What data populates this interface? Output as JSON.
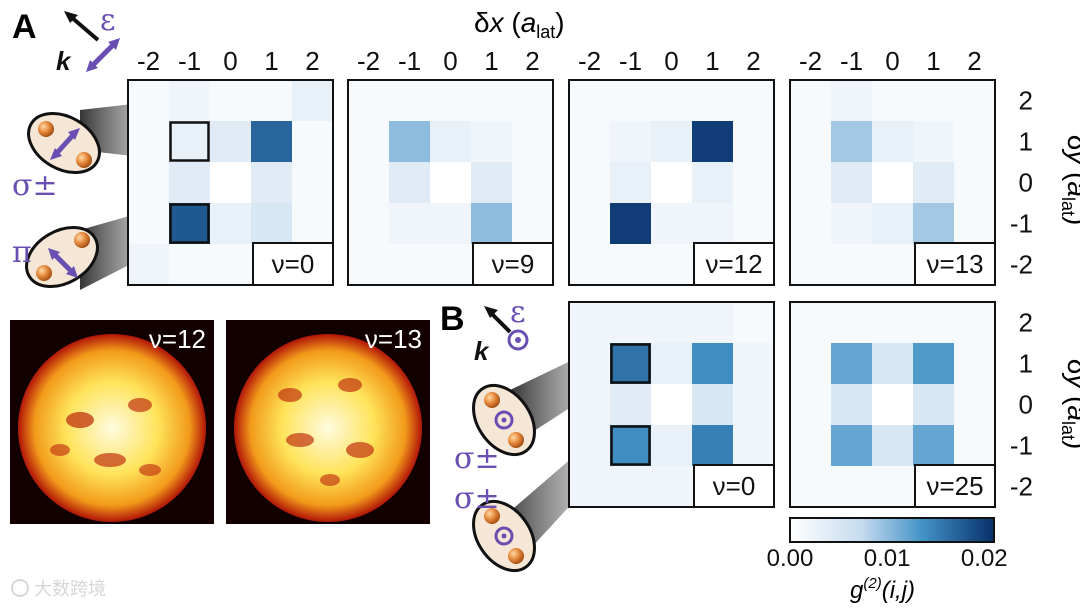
{
  "figure": {
    "panel_a_label": "A",
    "panel_b_label": "B",
    "polarization_symbol": "ε",
    "wavevector_symbol": "k",
    "x_axis_label_prefix": "δ",
    "x_axis_label_var": "x",
    "x_axis_label_paren_open": " (",
    "x_axis_label_a": "a",
    "x_axis_label_sub": "lat",
    "x_axis_label_paren_close": ")",
    "y_axis_label_prefix": "δ",
    "y_axis_label_var": "y",
    "y_axis_label_a": "a",
    "y_axis_label_sub": "lat",
    "transition_sigma": "σ±",
    "transition_pi": "π",
    "watermark": "大数跨境"
  },
  "colorbar": {
    "label_g": "g",
    "label_sup": "(2)",
    "label_args": "(i,j)",
    "tick_labels": [
      "0.00",
      "0.01",
      "0.02"
    ],
    "min": 0.0,
    "max": 0.021,
    "color_low": "#ffffff",
    "color_high": "#08306b"
  },
  "snapshots": [
    {
      "label": "ν=12"
    },
    {
      "label": "ν=13"
    }
  ],
  "colors": {
    "accent_purple": "#6a4fb3",
    "atom_orange": "#d9752f",
    "frame": "#111111"
  },
  "chart_data": {
    "type": "heatmap",
    "x_ticks": [
      -2,
      -1,
      0,
      1,
      2
    ],
    "y_ticks": [
      2,
      1,
      0,
      -1,
      -2
    ],
    "x_tick_labels": [
      "-2",
      "-1",
      "0",
      "1",
      "2"
    ],
    "y_tick_labels": [
      "2",
      "1",
      "0",
      "-1",
      "-2"
    ],
    "xlabel": "δx (a_lat)",
    "ylabel": "δy (a_lat)",
    "value_label": "g(2)(i,j)",
    "value_range": [
      0.0,
      0.02
    ],
    "panels": [
      {
        "row": "A",
        "label": "ν=0",
        "matrix": [
          [
            0.001,
            0.002,
            0.001,
            0.001,
            0.003
          ],
          [
            0.001,
            0.003,
            0.004,
            0.017,
            0.001
          ],
          [
            0.001,
            0.004,
            0.0,
            0.004,
            0.001
          ],
          [
            0.001,
            0.018,
            0.003,
            0.005,
            0.001
          ],
          [
            0.002,
            0.001,
            0.001,
            0.001,
            0.001
          ]
        ],
        "highlight": [
          [
            -1,
            1
          ],
          [
            -1,
            -1
          ]
        ]
      },
      {
        "row": "A",
        "label": "ν=9",
        "matrix": [
          [
            0.001,
            0.001,
            0.001,
            0.001,
            0.001
          ],
          [
            0.001,
            0.01,
            0.003,
            0.002,
            0.001
          ],
          [
            0.001,
            0.004,
            0.0,
            0.004,
            0.001
          ],
          [
            0.001,
            0.002,
            0.002,
            0.01,
            0.001
          ],
          [
            0.001,
            0.001,
            0.001,
            0.001,
            0.001
          ]
        ]
      },
      {
        "row": "A",
        "label": "ν=12",
        "matrix": [
          [
            0.001,
            0.001,
            0.001,
            0.001,
            0.001
          ],
          [
            0.001,
            0.002,
            0.003,
            0.02,
            0.001
          ],
          [
            0.001,
            0.003,
            0.0,
            0.003,
            0.001
          ],
          [
            0.001,
            0.02,
            0.002,
            0.002,
            0.001
          ],
          [
            0.001,
            0.001,
            0.001,
            0.001,
            0.001
          ]
        ]
      },
      {
        "row": "A",
        "label": "ν=13",
        "matrix": [
          [
            0.001,
            0.002,
            0.001,
            0.001,
            0.001
          ],
          [
            0.001,
            0.009,
            0.003,
            0.002,
            0.001
          ],
          [
            0.001,
            0.004,
            0.0,
            0.004,
            0.001
          ],
          [
            0.001,
            0.002,
            0.003,
            0.009,
            0.001
          ],
          [
            0.001,
            0.001,
            0.001,
            0.001,
            0.001
          ]
        ]
      },
      {
        "row": "B",
        "label": "ν=0",
        "matrix": [
          [
            0.002,
            0.002,
            0.002,
            0.002,
            0.001
          ],
          [
            0.002,
            0.016,
            0.003,
            0.014,
            0.002
          ],
          [
            0.002,
            0.004,
            0.0,
            0.005,
            0.002
          ],
          [
            0.002,
            0.014,
            0.003,
            0.015,
            0.002
          ],
          [
            0.002,
            0.002,
            0.002,
            0.002,
            0.001
          ]
        ],
        "highlight": [
          [
            -1,
            1
          ],
          [
            -1,
            -1
          ]
        ]
      },
      {
        "row": "B",
        "label": "ν=25",
        "matrix": [
          [
            0.001,
            0.001,
            0.001,
            0.001,
            0.001
          ],
          [
            0.001,
            0.012,
            0.005,
            0.013,
            0.001
          ],
          [
            0.001,
            0.005,
            0.0,
            0.005,
            0.001
          ],
          [
            0.001,
            0.012,
            0.005,
            0.012,
            0.001
          ],
          [
            0.001,
            0.001,
            0.001,
            0.001,
            0.001
          ]
        ]
      }
    ]
  }
}
